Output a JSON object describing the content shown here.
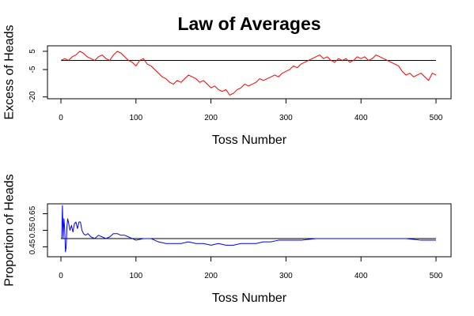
{
  "chart_data": {
    "title": "Law of Averages",
    "panels": [
      {
        "type": "line",
        "xlabel": "Toss Number",
        "ylabel": "Excess of Heads",
        "xlim": [
          0,
          500
        ],
        "ylim": [
          -21,
          8
        ],
        "xticks": [
          0,
          100,
          200,
          300,
          400,
          500
        ],
        "yticks": [
          5,
          -5,
          -20
        ],
        "reference_line": 0,
        "series": [
          {
            "color": "#ff0000",
            "x": [
              0,
              5,
              10,
              15,
              20,
              25,
              30,
              35,
              40,
              45,
              50,
              55,
              60,
              65,
              70,
              75,
              80,
              85,
              90,
              95,
              100,
              105,
              110,
              115,
              120,
              125,
              130,
              135,
              140,
              145,
              150,
              155,
              160,
              165,
              170,
              175,
              180,
              185,
              190,
              195,
              200,
              205,
              210,
              215,
              220,
              225,
              230,
              235,
              240,
              245,
              250,
              255,
              260,
              265,
              270,
              275,
              280,
              285,
              290,
              295,
              300,
              305,
              310,
              315,
              320,
              325,
              330,
              335,
              340,
              345,
              350,
              355,
              360,
              365,
              370,
              375,
              380,
              385,
              390,
              395,
              400,
              405,
              410,
              415,
              420,
              425,
              430,
              435,
              440,
              445,
              450,
              455,
              460,
              465,
              470,
              475,
              480,
              485,
              490,
              495,
              500
            ],
            "values": [
              0,
              1,
              0,
              2,
              3,
              5,
              4,
              2,
              1,
              0,
              2,
              3,
              1,
              0,
              3,
              5,
              4,
              2,
              0,
              -1,
              -3,
              0,
              1,
              -2,
              -3,
              -5,
              -7,
              -9,
              -10,
              -12,
              -13,
              -11,
              -12,
              -10,
              -8,
              -9,
              -10,
              -12,
              -11,
              -13,
              -15,
              -14,
              -16,
              -17,
              -16,
              -19,
              -18,
              -16,
              -15,
              -13,
              -14,
              -13,
              -12,
              -10,
              -11,
              -10,
              -9,
              -8,
              -9,
              -7,
              -6,
              -5,
              -3,
              -4,
              -2,
              -1,
              0,
              1,
              2,
              3,
              1,
              2,
              0,
              -1,
              1,
              0,
              1,
              -1,
              0,
              2,
              1,
              2,
              0,
              1,
              3,
              2,
              1,
              0,
              -1,
              -2,
              -3,
              -6,
              -8,
              -7,
              -9,
              -8,
              -7,
              -9,
              -11,
              -7,
              -8
            ]
          }
        ]
      },
      {
        "type": "line",
        "xlabel": "Toss Number",
        "ylabel": "Proportion of Heads",
        "xlim": [
          0,
          500
        ],
        "ylim": [
          0.39,
          0.71
        ],
        "xticks": [
          0,
          100,
          200,
          300,
          400,
          500
        ],
        "yticks": [
          0.45,
          0.55,
          0.65
        ],
        "reference_line": 0.5,
        "series": [
          {
            "color": "#0000ff",
            "x": [
              1,
              2,
              3,
              4,
              5,
              6,
              7,
              8,
              9,
              10,
              12,
              14,
              16,
              18,
              20,
              22,
              24,
              26,
              28,
              30,
              33,
              36,
              40,
              45,
              50,
              55,
              60,
              65,
              70,
              75,
              80,
              85,
              90,
              95,
              100,
              110,
              120,
              130,
              140,
              150,
              160,
              170,
              180,
              190,
              200,
              210,
              220,
              230,
              240,
              250,
              260,
              270,
              280,
              290,
              300,
              320,
              340,
              360,
              380,
              400,
              420,
              440,
              460,
              480,
              500
            ],
            "values": [
              0.5,
              0.7,
              0.5,
              0.62,
              0.56,
              0.42,
              0.45,
              0.57,
              0.62,
              0.6,
              0.55,
              0.58,
              0.54,
              0.59,
              0.6,
              0.56,
              0.6,
              0.6,
              0.55,
              0.53,
              0.52,
              0.53,
              0.51,
              0.5,
              0.52,
              0.51,
              0.5,
              0.51,
              0.53,
              0.53,
              0.52,
              0.52,
              0.51,
              0.5,
              0.49,
              0.5,
              0.5,
              0.48,
              0.47,
              0.47,
              0.47,
              0.48,
              0.47,
              0.47,
              0.46,
              0.47,
              0.46,
              0.46,
              0.47,
              0.47,
              0.47,
              0.48,
              0.48,
              0.49,
              0.49,
              0.49,
              0.5,
              0.5,
              0.5,
              0.5,
              0.5,
              0.5,
              0.5,
              0.49,
              0.49
            ]
          }
        ]
      }
    ]
  }
}
